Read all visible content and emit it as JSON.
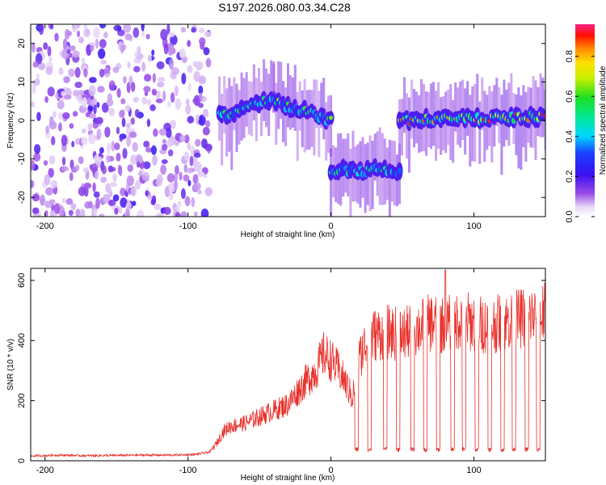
{
  "title": "S197.2026.080.03.34.C28",
  "chart_data": [
    {
      "type": "heatmap",
      "name": "spectrogram",
      "xlabel": "Height of straight line (km)",
      "ylabel": "Frequency (Hz)",
      "xlim": [
        -210,
        150
      ],
      "ylim": [
        -25,
        25
      ],
      "xticks": [
        -200,
        -100,
        0,
        100
      ],
      "yticks": [
        -20,
        -10,
        0,
        10,
        20
      ],
      "colorbar": {
        "label": "Normalized spectral amplitude",
        "range": [
          0,
          0.96
        ],
        "ticks": [
          0.0,
          0.2,
          0.4,
          0.6,
          0.8
        ],
        "tick_labels": [
          "0.0",
          "0.2",
          "0.4",
          "0.6",
          "0.8"
        ]
      },
      "segments": [
        {
          "x_start": -210,
          "x_end": -85,
          "kind": "noise",
          "freq_center": 0,
          "amplitude": 0.15
        },
        {
          "x_start": -78,
          "x_end": -40,
          "kind": "signal",
          "freq_center_start": 1,
          "freq_center_end": 6,
          "amplitude": 0.35
        },
        {
          "x_start": -40,
          "x_end": 0,
          "kind": "signal",
          "freq_center_start": 5,
          "freq_center_end": 0,
          "amplitude": 0.45
        },
        {
          "x_start": 0,
          "x_end": 48,
          "kind": "signal",
          "freq_center_start": -13,
          "freq_center_end": -13,
          "amplitude": 0.35
        },
        {
          "x_start": 48,
          "x_end": 150,
          "kind": "signal",
          "freq_center_start": 0,
          "freq_center_end": 1,
          "amplitude": 0.9
        }
      ]
    },
    {
      "type": "line",
      "name": "snr",
      "xlabel": "Height of straight line (km)",
      "ylabel": "SNR (10 * v/v)",
      "xlim": [
        -210,
        150
      ],
      "ylim": [
        0,
        640
      ],
      "xticks": [
        -200,
        -100,
        0,
        100
      ],
      "yticks": [
        0,
        200,
        400,
        600
      ],
      "color": "#e8302a",
      "series": [
        {
          "name": "SNR",
          "x": [
            -210,
            -190,
            -170,
            -150,
            -130,
            -110,
            -95,
            -85,
            -80,
            -75,
            -70,
            -60,
            -50,
            -40,
            -30,
            -20,
            -10,
            -5,
            0,
            5,
            10,
            15,
            20,
            25,
            30,
            40,
            50,
            60,
            70,
            80,
            90,
            100,
            110,
            120,
            130,
            140,
            150
          ],
          "values": [
            15,
            18,
            16,
            17,
            18,
            18,
            20,
            28,
            55,
            95,
            110,
            120,
            140,
            160,
            180,
            240,
            290,
            340,
            320,
            290,
            250,
            200,
            330,
            380,
            400,
            410,
            400,
            420,
            440,
            430,
            450,
            440,
            430,
            440,
            450,
            460,
            470
          ]
        }
      ],
      "dropouts_x": [
        18,
        27,
        38,
        47,
        57,
        66,
        75,
        85,
        93,
        102,
        111,
        120,
        128,
        137,
        145
      ],
      "dropout_level": 30,
      "peak": {
        "x": 80,
        "y": 635
      }
    }
  ],
  "colors": {
    "background": "#ffffff",
    "frame": "#000000",
    "line": "#e8302a"
  }
}
